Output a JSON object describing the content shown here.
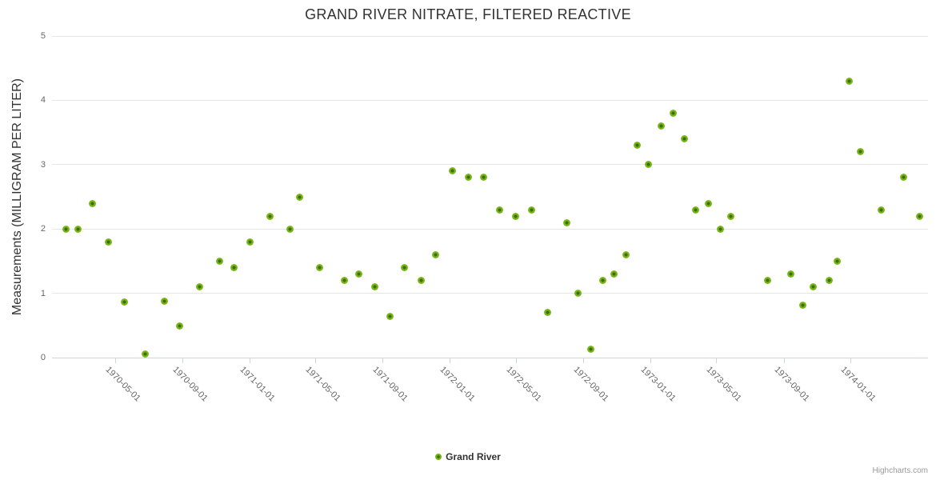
{
  "title": "GRAND RIVER NITRATE, FILTERED REACTIVE",
  "credit_label": "Highcharts.com",
  "colors": {
    "marker_outer": "#76b412",
    "marker_inner": "#3e6b10",
    "grid_line": "#e6e6e6",
    "axis_line": "#ccd6eb",
    "tick_label": "#666666",
    "title_text": "#333333",
    "credit_text": "#999999"
  },
  "chart_data": {
    "type": "scatter",
    "title": "GRAND RIVER NITRATE, FILTERED REACTIVE",
    "xlabel": "",
    "ylabel": "Measurements (MILLIGRAM PER LITER)",
    "ylim": [
      0,
      5
    ],
    "yticks": [
      0,
      1,
      2,
      3,
      4,
      5
    ],
    "xlim": [
      "1970-01-06",
      "1974-05-22"
    ],
    "xticks": [
      "1970-05-01",
      "1970-09-01",
      "1971-01-01",
      "1971-05-01",
      "1971-09-01",
      "1972-01-01",
      "1972-05-01",
      "1972-09-01",
      "1973-01-01",
      "1973-05-01",
      "1973-09-01",
      "1974-01-01"
    ],
    "grid": "horizontal",
    "legend_position": "bottom-center",
    "series": [
      {
        "name": "Grand River",
        "points": [
          {
            "x": "1970-02-01",
            "y": 2.0
          },
          {
            "x": "1970-02-23",
            "y": 2.0
          },
          {
            "x": "1970-03-21",
            "y": 2.4
          },
          {
            "x": "1970-04-19",
            "y": 1.8
          },
          {
            "x": "1970-05-18",
            "y": 0.87
          },
          {
            "x": "1970-06-25",
            "y": 0.06
          },
          {
            "x": "1970-07-30",
            "y": 0.88
          },
          {
            "x": "1970-08-26",
            "y": 0.49
          },
          {
            "x": "1970-10-02",
            "y": 1.1
          },
          {
            "x": "1970-11-08",
            "y": 1.5
          },
          {
            "x": "1970-12-04",
            "y": 1.4
          },
          {
            "x": "1971-01-02",
            "y": 1.8
          },
          {
            "x": "1971-02-07",
            "y": 2.2
          },
          {
            "x": "1971-03-16",
            "y": 2.0
          },
          {
            "x": "1971-04-03",
            "y": 2.5
          },
          {
            "x": "1971-05-09",
            "y": 1.4
          },
          {
            "x": "1971-06-23",
            "y": 1.2
          },
          {
            "x": "1971-07-20",
            "y": 1.3
          },
          {
            "x": "1971-08-17",
            "y": 1.1
          },
          {
            "x": "1971-09-14",
            "y": 0.64
          },
          {
            "x": "1971-10-11",
            "y": 1.4
          },
          {
            "x": "1971-11-10",
            "y": 1.2
          },
          {
            "x": "1971-12-07",
            "y": 1.6
          },
          {
            "x": "1972-01-06",
            "y": 2.9
          },
          {
            "x": "1972-02-04",
            "y": 2.8
          },
          {
            "x": "1972-03-03",
            "y": 2.8
          },
          {
            "x": "1972-04-01",
            "y": 2.3
          },
          {
            "x": "1972-04-30",
            "y": 2.2
          },
          {
            "x": "1972-05-29",
            "y": 2.3
          },
          {
            "x": "1972-06-27",
            "y": 0.7
          },
          {
            "x": "1972-08-01",
            "y": 2.1
          },
          {
            "x": "1972-08-22",
            "y": 1.0
          },
          {
            "x": "1972-09-14",
            "y": 0.13
          },
          {
            "x": "1972-10-06",
            "y": 1.2
          },
          {
            "x": "1972-10-26",
            "y": 1.3
          },
          {
            "x": "1972-11-17",
            "y": 1.6
          },
          {
            "x": "1972-12-08",
            "y": 3.3
          },
          {
            "x": "1972-12-29",
            "y": 3.0
          },
          {
            "x": "1973-01-20",
            "y": 3.6
          },
          {
            "x": "1973-02-12",
            "y": 3.8
          },
          {
            "x": "1973-03-04",
            "y": 3.4
          },
          {
            "x": "1973-03-25",
            "y": 2.3
          },
          {
            "x": "1973-04-16",
            "y": 2.4
          },
          {
            "x": "1973-05-09",
            "y": 2.0
          },
          {
            "x": "1973-05-28",
            "y": 2.2
          },
          {
            "x": "1973-08-03",
            "y": 1.2
          },
          {
            "x": "1973-09-14",
            "y": 1.3
          },
          {
            "x": "1973-10-06",
            "y": 0.82
          },
          {
            "x": "1973-10-25",
            "y": 1.1
          },
          {
            "x": "1973-11-23",
            "y": 1.2
          },
          {
            "x": "1973-12-08",
            "y": 1.5
          },
          {
            "x": "1973-12-29",
            "y": 4.3
          },
          {
            "x": "1974-01-19",
            "y": 3.2
          },
          {
            "x": "1974-02-25",
            "y": 2.3
          },
          {
            "x": "1974-04-08",
            "y": 2.8
          },
          {
            "x": "1974-05-07",
            "y": 2.2
          }
        ]
      }
    ]
  }
}
